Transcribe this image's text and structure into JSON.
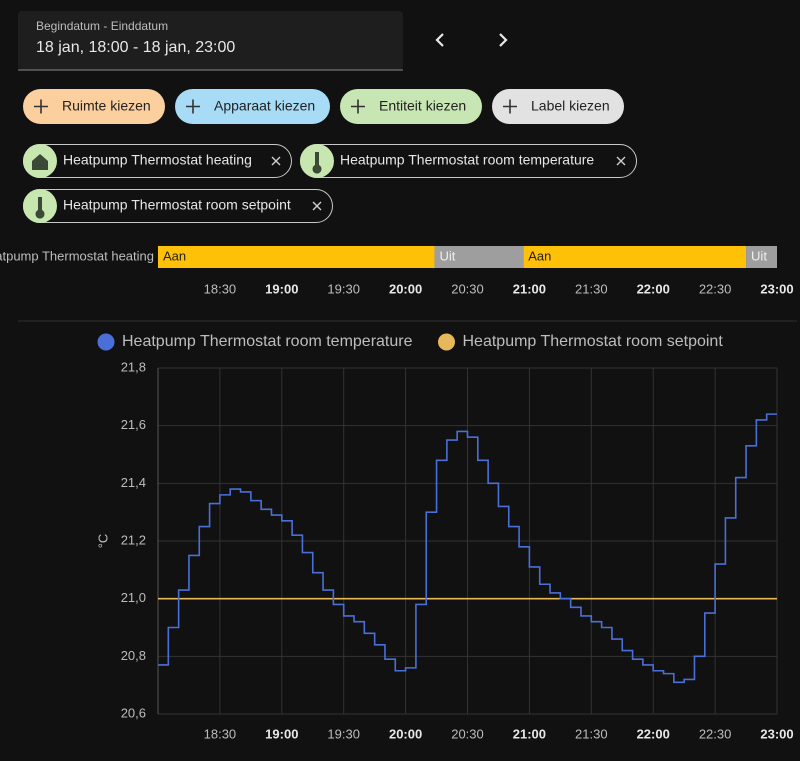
{
  "date_picker": {
    "label": "Begindatum - Einddatum",
    "value": "18 jan, 18:00 - 18 jan, 23:00"
  },
  "buttons": [
    "Ruimte kiezen",
    "Apparaat kiezen",
    "Entiteit kiezen",
    "Label kiezen"
  ],
  "chips": [
    "Heatpump Thermostat heating",
    "Heatpump Thermostat room temperature",
    "Heatpump Thermostat room setpoint"
  ],
  "timeline": {
    "entity": "Heatpump Thermostat heating",
    "segments": [
      {
        "state": "Aan",
        "start": "18:00",
        "end": "20:14"
      },
      {
        "state": "Uit",
        "start": "20:14",
        "end": "20:57"
      },
      {
        "state": "Aan",
        "start": "20:57",
        "end": "22:45"
      },
      {
        "state": "Uit",
        "start": "22:45",
        "end": "23:00"
      }
    ],
    "ticks": [
      "18:30",
      "19:00",
      "19:30",
      "20:00",
      "20:30",
      "21:00",
      "21:30",
      "22:00",
      "22:30",
      "23:00"
    ]
  },
  "chart_data": {
    "type": "line",
    "ylabel": "°C",
    "xlim": [
      "18:00",
      "23:00"
    ],
    "xticks": [
      "18:30",
      "19:00",
      "19:30",
      "20:00",
      "20:30",
      "21:00",
      "21:30",
      "22:00",
      "22:30",
      "23:00"
    ],
    "ylim": [
      20.6,
      21.8
    ],
    "yticks": [
      {
        "value": 20.6,
        "label": "20,6"
      },
      {
        "value": 20.8,
        "label": "20,8"
      },
      {
        "value": 21.0,
        "label": "21,0"
      },
      {
        "value": 21.2,
        "label": "21,2"
      },
      {
        "value": 21.4,
        "label": "21,4"
      },
      {
        "value": 21.6,
        "label": "21,6"
      },
      {
        "value": 21.8,
        "label": "21,8"
      }
    ],
    "grid": true,
    "series": [
      {
        "name": "Heatpump Thermostat room temperature",
        "color": "#4a6fd8",
        "x": [
          "18:00",
          "18:05",
          "18:10",
          "18:15",
          "18:20",
          "18:25",
          "18:30",
          "18:35",
          "18:40",
          "18:45",
          "18:50",
          "18:55",
          "19:00",
          "19:05",
          "19:10",
          "19:15",
          "19:20",
          "19:25",
          "19:30",
          "19:35",
          "19:40",
          "19:45",
          "19:50",
          "19:55",
          "20:00",
          "20:05",
          "20:10",
          "20:15",
          "20:20",
          "20:25",
          "20:30",
          "20:35",
          "20:40",
          "20:45",
          "20:50",
          "20:55",
          "21:00",
          "21:05",
          "21:10",
          "21:15",
          "21:20",
          "21:25",
          "21:30",
          "21:35",
          "21:40",
          "21:45",
          "21:50",
          "21:55",
          "22:00",
          "22:05",
          "22:10",
          "22:15",
          "22:20",
          "22:25",
          "22:30",
          "22:35",
          "22:40",
          "22:45",
          "22:50",
          "22:55",
          "23:00"
        ],
        "values": [
          20.77,
          20.9,
          21.03,
          21.15,
          21.25,
          21.33,
          21.36,
          21.38,
          21.37,
          21.34,
          21.31,
          21.29,
          21.27,
          21.22,
          21.16,
          21.09,
          21.03,
          20.98,
          20.94,
          20.92,
          20.88,
          20.84,
          20.79,
          20.75,
          20.76,
          20.98,
          21.3,
          21.48,
          21.55,
          21.58,
          21.56,
          21.48,
          21.4,
          21.32,
          21.25,
          21.18,
          21.11,
          21.05,
          21.02,
          21.0,
          20.97,
          20.94,
          20.92,
          20.9,
          20.86,
          20.82,
          20.79,
          20.77,
          20.75,
          20.74,
          20.71,
          20.72,
          20.8,
          20.95,
          21.12,
          21.28,
          21.42,
          21.53,
          21.62,
          21.64,
          21.64
        ]
      },
      {
        "name": "Heatpump Thermostat room setpoint",
        "color": "#e6b85a",
        "x": [
          "18:00",
          "23:00"
        ],
        "values": [
          21.0,
          21.0
        ]
      }
    ]
  }
}
